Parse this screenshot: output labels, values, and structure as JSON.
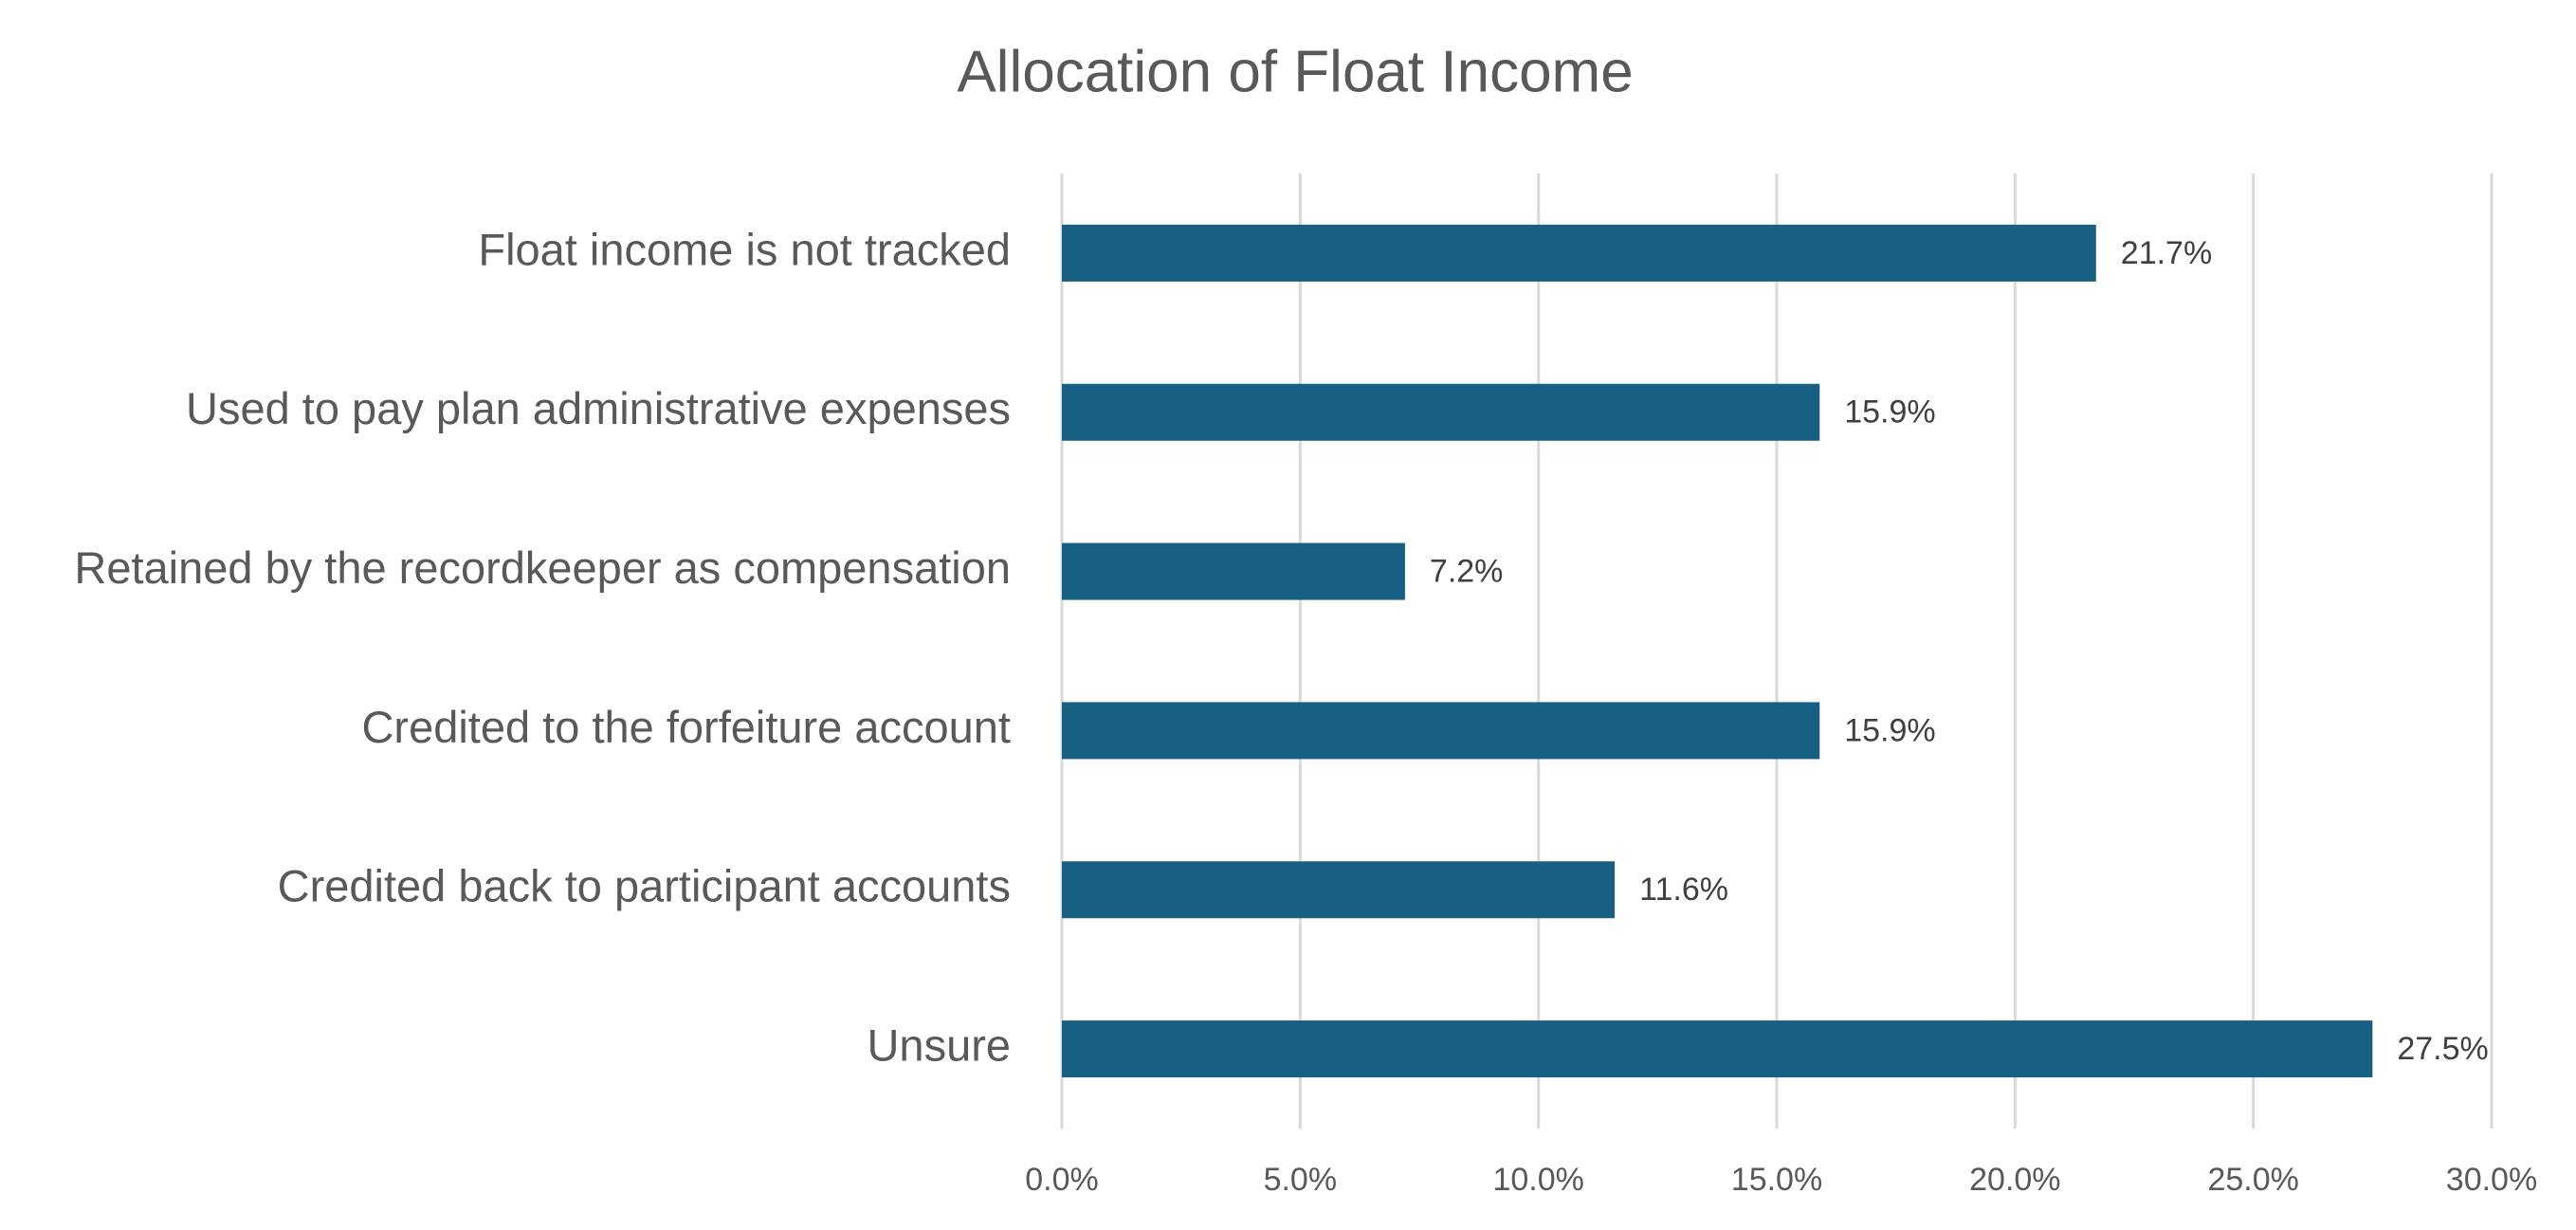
{
  "chart_data": {
    "type": "hbar",
    "title": "Allocation of Float Income",
    "categories": [
      "Float income is not tracked",
      "Used to pay plan administrative expenses",
      "Retained by the recordkeeper as compensation",
      "Credited to the forfeiture account",
      "Credited back to participant accounts",
      "Unsure"
    ],
    "values": [
      21.7,
      15.9,
      7.2,
      15.9,
      11.6,
      27.5
    ],
    "value_labels": [
      "21.7%",
      "15.9%",
      "7.2%",
      "15.9%",
      "11.6%",
      "27.5%"
    ],
    "color": "#176083",
    "xlim": [
      0,
      30
    ],
    "xticks": [
      {
        "value": 0,
        "label": "0.0%"
      },
      {
        "value": 5,
        "label": "5.0%"
      },
      {
        "value": 10,
        "label": "10.0%"
      },
      {
        "value": 15,
        "label": "15.0%"
      },
      {
        "value": 20,
        "label": "20.0%"
      },
      {
        "value": 25,
        "label": "25.0%"
      },
      {
        "value": 30,
        "label": "30.0%"
      }
    ],
    "grid": true
  }
}
